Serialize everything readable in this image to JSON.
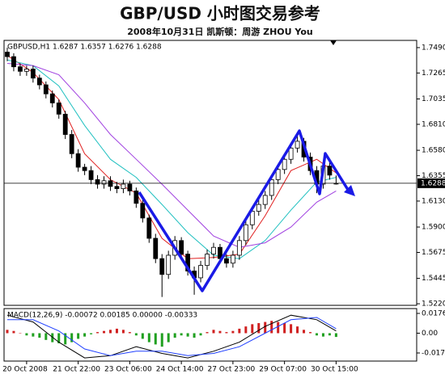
{
  "chart_data": {
    "type": "candlestick",
    "title": "GBP/USD 小时图交易参考",
    "subtitle": "2008年10月31日   凯斯顿：周游 ZHOU You",
    "price_label": "GBPUSD,H1  1.6287 1.6357 1.6276 1.6288",
    "ylim": [
      1.5206,
      1.7554
    ],
    "yticks": [
      {
        "value": 1.749,
        "label": "1.7490"
      },
      1.7265,
      1.7035,
      {
        "value": 1.681,
        "label": "1.6810"
      },
      {
        "value": 1.658,
        "label": "1.6580"
      },
      1.6355,
      {
        "value": 1.613,
        "label": "1.6130"
      },
      {
        "value": 1.59,
        "label": "1.5900"
      },
      1.5675,
      1.5445,
      {
        "value": 1.522,
        "label": "1.5220"
      }
    ],
    "current_price": 1.6288,
    "xlim": [
      -0.5,
      63.5
    ],
    "xticks": [
      {
        "value": 3,
        "label": "20 Oct 2008"
      },
      {
        "value": 11,
        "label": "21 Oct 22:00"
      },
      {
        "value": 19,
        "label": "23 Oct 06:00"
      },
      {
        "value": 27,
        "label": "24 Oct 14:00"
      },
      {
        "value": 35,
        "label": "27 Oct 23:00"
      },
      {
        "value": 43,
        "label": "29 Oct 07:00"
      },
      {
        "value": 51,
        "label": "30 Oct 15:00"
      }
    ],
    "open": [
      1.745,
      1.741,
      1.732,
      1.728,
      1.73,
      1.722,
      1.716,
      1.708,
      1.7,
      1.69,
      1.672,
      1.655,
      1.643,
      1.64,
      1.632,
      1.628,
      1.631,
      1.626,
      1.624,
      1.628,
      1.622,
      1.611,
      1.598,
      1.58,
      1.562,
      1.548,
      1.565,
      1.578,
      1.566,
      1.551,
      1.545,
      1.556,
      1.566,
      1.572,
      1.562,
      1.558,
      1.565,
      1.578,
      1.592,
      1.604,
      1.61,
      1.618,
      1.632,
      1.641,
      1.65,
      1.66,
      1.666,
      1.652,
      1.64,
      1.628,
      1.644,
      1.6287
    ],
    "high": [
      1.749,
      1.744,
      1.735,
      1.733,
      1.733,
      1.725,
      1.719,
      1.711,
      1.703,
      1.693,
      1.676,
      1.659,
      1.646,
      1.644,
      1.636,
      1.635,
      1.635,
      1.63,
      1.632,
      1.631,
      1.625,
      1.614,
      1.601,
      1.584,
      1.566,
      1.569,
      1.582,
      1.581,
      1.569,
      1.555,
      1.56,
      1.57,
      1.576,
      1.575,
      1.566,
      1.569,
      1.582,
      1.596,
      1.608,
      1.614,
      1.622,
      1.636,
      1.645,
      1.654,
      1.664,
      1.671,
      1.669,
      1.656,
      1.644,
      1.648,
      1.649,
      1.6357
    ],
    "low": [
      1.737,
      1.728,
      1.724,
      1.724,
      1.718,
      1.712,
      1.704,
      1.696,
      1.686,
      1.668,
      1.651,
      1.639,
      1.636,
      1.628,
      1.624,
      1.624,
      1.622,
      1.62,
      1.62,
      1.618,
      1.607,
      1.594,
      1.576,
      1.558,
      1.528,
      1.544,
      1.561,
      1.562,
      1.547,
      1.53,
      1.541,
      1.552,
      1.562,
      1.558,
      1.554,
      1.554,
      1.561,
      1.574,
      1.588,
      1.6,
      1.606,
      1.614,
      1.628,
      1.637,
      1.646,
      1.656,
      1.648,
      1.636,
      1.62,
      1.624,
      1.632,
      1.6276
    ],
    "close": [
      1.741,
      1.732,
      1.728,
      1.73,
      1.722,
      1.716,
      1.708,
      1.7,
      1.69,
      1.672,
      1.655,
      1.643,
      1.64,
      1.632,
      1.628,
      1.631,
      1.626,
      1.624,
      1.628,
      1.622,
      1.611,
      1.598,
      1.58,
      1.562,
      1.548,
      1.565,
      1.578,
      1.566,
      1.551,
      1.545,
      1.556,
      1.566,
      1.572,
      1.562,
      1.558,
      1.565,
      1.578,
      1.592,
      1.604,
      1.61,
      1.618,
      1.632,
      1.641,
      1.65,
      1.66,
      1.666,
      1.652,
      1.64,
      1.628,
      1.644,
      1.636,
      1.6288
    ],
    "ma_x": [
      0,
      4,
      8,
      12,
      16,
      20,
      24,
      28,
      32,
      36,
      40,
      44,
      48,
      51
    ],
    "moving_averages": [
      {
        "color": "#e02020",
        "values": [
          1.742,
          1.727,
          1.703,
          1.655,
          1.632,
          1.62,
          1.58,
          1.562,
          1.563,
          1.566,
          1.6,
          1.64,
          1.65,
          1.638
        ]
      },
      {
        "color": "#20c0c0",
        "values": [
          1.738,
          1.733,
          1.715,
          1.68,
          1.65,
          1.634,
          1.61,
          1.585,
          1.565,
          1.562,
          1.578,
          1.605,
          1.63,
          1.634
        ]
      },
      {
        "color": "#a040e0",
        "values": [
          1.735,
          1.733,
          1.725,
          1.7,
          1.672,
          1.65,
          1.628,
          1.605,
          1.582,
          1.572,
          1.576,
          1.59,
          1.612,
          1.622
        ]
      }
    ],
    "macd": {
      "label": "MACD(12,26,9) -0.00072 0.00185 0.00000 -0.00333",
      "ylim": [
        -0.0248,
        0.0219
      ],
      "yticks": [
        0.0176,
        {
          "value": 0,
          "label": "0.00"
        },
        -0.0176
      ],
      "histogram": [
        0.003,
        0.002,
        0.0,
        -0.002,
        -0.003,
        -0.004,
        -0.006,
        -0.008,
        -0.009,
        -0.01,
        -0.008,
        -0.005,
        -0.003,
        -0.001,
        0.001,
        0.002,
        0.003,
        0.004,
        0.003,
        0.001,
        -0.002,
        -0.005,
        -0.008,
        -0.01,
        -0.012,
        -0.008,
        -0.004,
        -0.002,
        -0.003,
        -0.004,
        -0.002,
        0.001,
        0.003,
        0.002,
        0.001,
        0.002,
        0.004,
        0.006,
        0.008,
        0.009,
        0.01,
        0.011,
        0.01,
        0.009,
        0.008,
        0.006,
        0.003,
        0.001,
        -0.002,
        -0.003,
        -0.002,
        -0.00333
      ],
      "lines": [
        {
          "color": "#000000",
          "values": [
            0.016,
            0.01,
            -0.008,
            -0.022,
            -0.02,
            -0.012,
            -0.018,
            -0.022,
            -0.016,
            -0.008,
            0.006,
            0.016,
            0.012,
            0.002
          ]
        },
        {
          "color": "#2040ff",
          "values": [
            0.012,
            0.012,
            0.002,
            -0.014,
            -0.02,
            -0.016,
            -0.016,
            -0.02,
            -0.018,
            -0.012,
            0.0,
            0.012,
            0.014,
            0.004
          ]
        }
      ]
    }
  }
}
